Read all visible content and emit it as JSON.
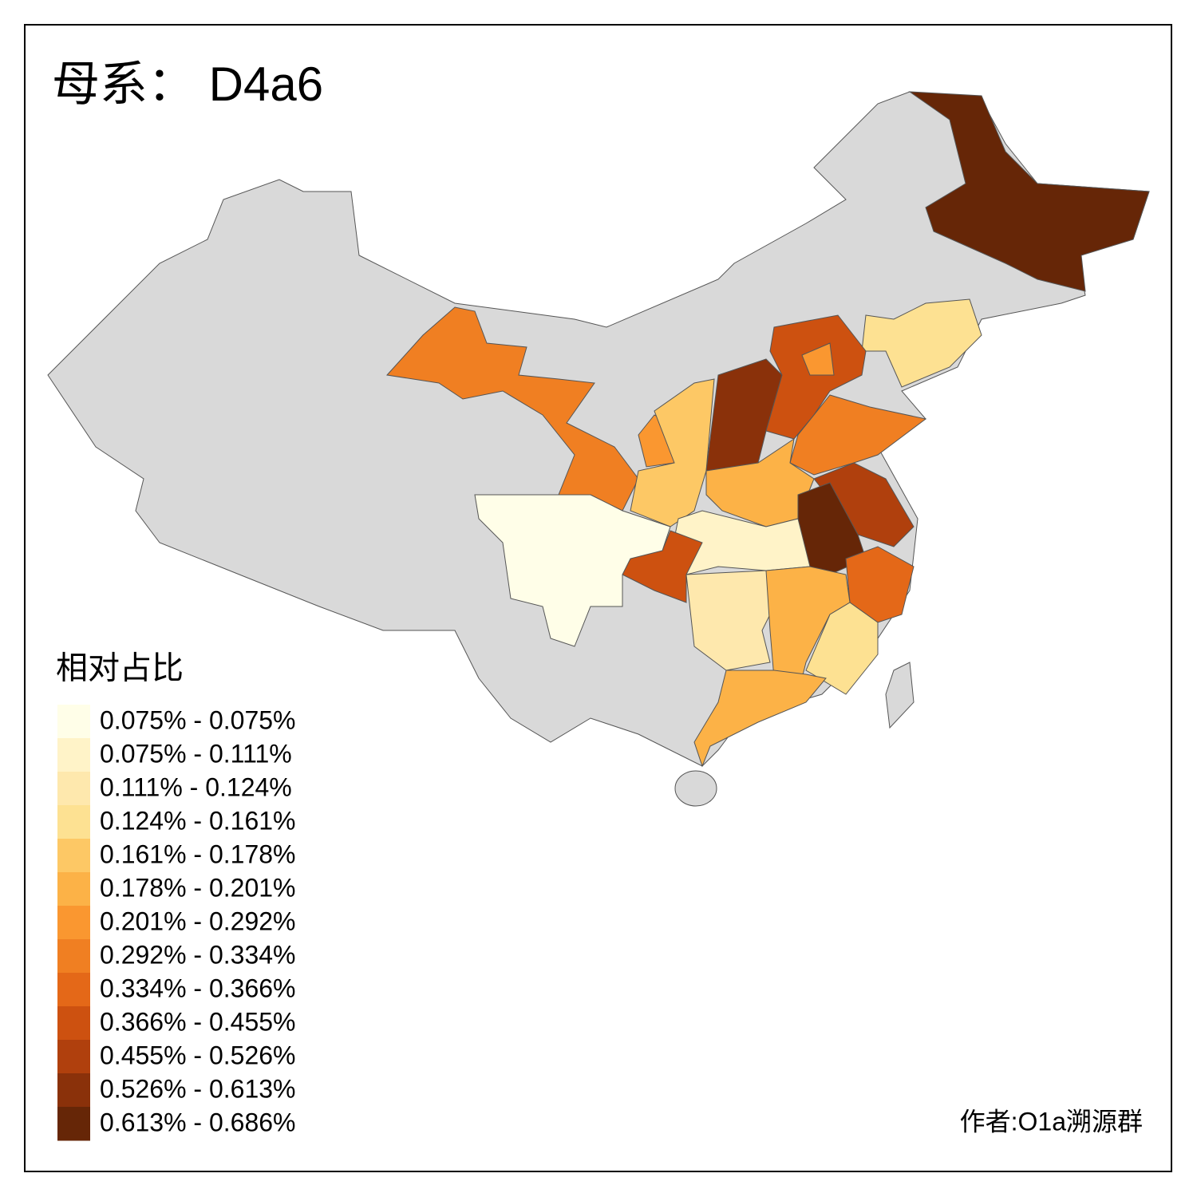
{
  "map": {
    "title": "母系： D4a6",
    "legend": {
      "title": "相对占比",
      "items": [
        {
          "label": "0.075% - 0.075%",
          "color": "#fffee8"
        },
        {
          "label": "0.075% - 0.111%",
          "color": "#fff3c8"
        },
        {
          "label": "0.111% - 0.124%",
          "color": "#fee8ad"
        },
        {
          "label": "0.124% - 0.161%",
          "color": "#fde192"
        },
        {
          "label": "0.161% - 0.178%",
          "color": "#fdc865"
        },
        {
          "label": "0.178% - 0.201%",
          "color": "#fcb247"
        },
        {
          "label": "0.201% - 0.292%",
          "color": "#fa9730"
        },
        {
          "label": "0.292% - 0.334%",
          "color": "#f07f22"
        },
        {
          "label": "0.334% - 0.366%",
          "color": "#e46818"
        },
        {
          "label": "0.366% - 0.455%",
          "color": "#cd5110"
        },
        {
          "label": "0.455% - 0.526%",
          "color": "#b0400d"
        },
        {
          "label": "0.526% - 0.613%",
          "color": "#8a310a"
        },
        {
          "label": "0.613% - 0.686%",
          "color": "#662607"
        }
      ]
    },
    "credit": "作者:O1a溯源群"
  }
}
